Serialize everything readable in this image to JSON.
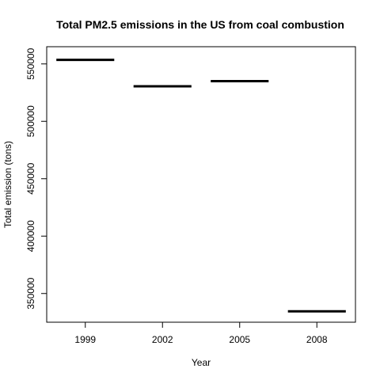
{
  "chart_data": {
    "type": "bar",
    "title": "Total PM2.5 emissions in the US from coal combustion",
    "xlabel": "Year",
    "ylabel": "Total emission (tons)",
    "categories": [
      "1999",
      "2002",
      "2005",
      "2008"
    ],
    "values": [
      553500,
      530500,
      535000,
      334500
    ],
    "ylim": [
      325000,
      565000
    ],
    "yticks": [
      350000,
      400000,
      450000,
      500000,
      550000
    ],
    "ytick_labels": [
      "350000",
      "400000",
      "450000",
      "500000",
      "550000"
    ],
    "grid": false,
    "mark_style": "horizontal segment per category",
    "mark_color": "#000000"
  }
}
